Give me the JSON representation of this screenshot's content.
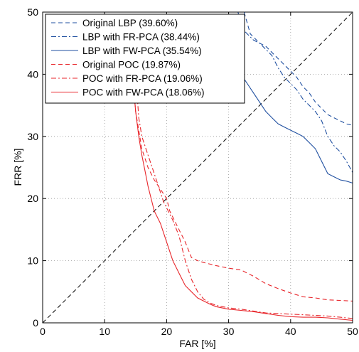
{
  "chart_data": {
    "type": "line",
    "title": "",
    "xlabel": "FAR [%]",
    "ylabel": "FRR [%]",
    "xlim": [
      0,
      50
    ],
    "ylim": [
      0,
      50
    ],
    "xticks": [
      0,
      10,
      20,
      30,
      40,
      50
    ],
    "yticks": [
      0,
      10,
      20,
      30,
      40,
      50
    ],
    "grid": true,
    "grid_style": "dotted",
    "legend_position": "top-left",
    "diagonal": {
      "x": [
        0,
        50
      ],
      "y": [
        0,
        50
      ],
      "color": "#000000",
      "dash": "dashed"
    },
    "series": [
      {
        "name": "Original LBP (39.60%)",
        "color": "#1f4fa0",
        "dash": "dashed",
        "x": [
          32.5,
          33.5,
          35,
          36,
          37,
          38,
          39,
          40,
          41,
          42,
          43,
          44,
          45,
          46,
          47,
          48,
          49,
          50
        ],
        "y": [
          50,
          46.5,
          45,
          44.5,
          43.5,
          42.5,
          41.5,
          40.5,
          39.5,
          38,
          37,
          35.5,
          34.5,
          33.5,
          33,
          32.5,
          32,
          31.8
        ]
      },
      {
        "name": "LBP with FR-PCA (38.44%)",
        "color": "#1f4fa0",
        "dash": "dashdot",
        "x": [
          31.5,
          32.5,
          34,
          35,
          36,
          37,
          38,
          39,
          40,
          41,
          42,
          43,
          44,
          45,
          46,
          47,
          48,
          49,
          50
        ],
        "y": [
          50,
          47,
          45.5,
          45,
          44,
          43,
          41,
          39.5,
          38.5,
          37.5,
          36,
          35,
          34,
          32.5,
          30,
          28.5,
          27.5,
          26,
          24.2
        ]
      },
      {
        "name": "LBP with FW-PCA (35.54%)",
        "color": "#1f4fa0",
        "dash": "solid",
        "x": [
          28,
          30,
          32,
          33,
          34,
          35,
          36,
          37,
          38,
          39,
          40,
          41,
          42,
          43,
          44,
          45,
          46,
          47,
          48,
          49,
          50
        ],
        "y": [
          42,
          41,
          40,
          38.5,
          37,
          35.5,
          34,
          33,
          32,
          31.5,
          31,
          30.5,
          30,
          29,
          28,
          26,
          24,
          23.5,
          23,
          22.8,
          22.5
        ]
      },
      {
        "name": "Original POC (19.87%)",
        "color": "#e8262b",
        "dash": "dashed",
        "x": [
          14.5,
          15,
          15.5,
          16,
          17,
          18,
          19,
          20,
          20.5,
          21,
          22,
          23,
          24,
          25,
          26,
          28,
          30,
          32,
          34,
          36,
          38,
          40,
          42,
          44,
          46,
          48,
          50
        ],
        "y": [
          40,
          34,
          31,
          28,
          25,
          23,
          21.5,
          20,
          18,
          17,
          15,
          13,
          10.5,
          10,
          9.7,
          9.2,
          8.8,
          8.5,
          7.5,
          6.3,
          5.5,
          4.8,
          4.2,
          4.0,
          3.7,
          3.6,
          3.5
        ]
      },
      {
        "name": "POC with FR-PCA (19.06%)",
        "color": "#e8262b",
        "dash": "dashdot",
        "x": [
          15,
          15.5,
          16,
          17,
          18,
          19,
          19.5,
          20,
          21,
          22,
          23,
          24,
          25,
          26,
          27,
          28,
          30,
          32,
          34,
          36,
          38,
          40,
          42,
          44,
          46,
          48,
          50
        ],
        "y": [
          40,
          33,
          30,
          27,
          24,
          21,
          19.5,
          18.5,
          16.5,
          14,
          10,
          7,
          5,
          3.8,
          3.2,
          2.8,
          2.4,
          2.2,
          1.9,
          1.6,
          1.5,
          1.4,
          1.3,
          1.2,
          1.1,
          0.9,
          0.7
        ]
      },
      {
        "name": "POC with FW-PCA (18.06%)",
        "color": "#e8262b",
        "dash": "solid",
        "x": [
          14.5,
          15,
          15.5,
          16,
          16.5,
          17,
          17.5,
          18,
          19,
          20,
          21,
          22,
          23,
          24,
          25,
          26,
          27,
          28,
          30,
          32,
          34,
          36,
          38,
          40,
          42,
          44,
          46,
          48,
          50
        ],
        "y": [
          40,
          34,
          30,
          27,
          24.5,
          22,
          20,
          18,
          16,
          13,
          10,
          8,
          6,
          5,
          4,
          3.5,
          3,
          2.6,
          2.2,
          2.0,
          1.8,
          1.5,
          1.2,
          1.0,
          0.9,
          0.9,
          0.8,
          0.6,
          0.4
        ]
      }
    ]
  }
}
